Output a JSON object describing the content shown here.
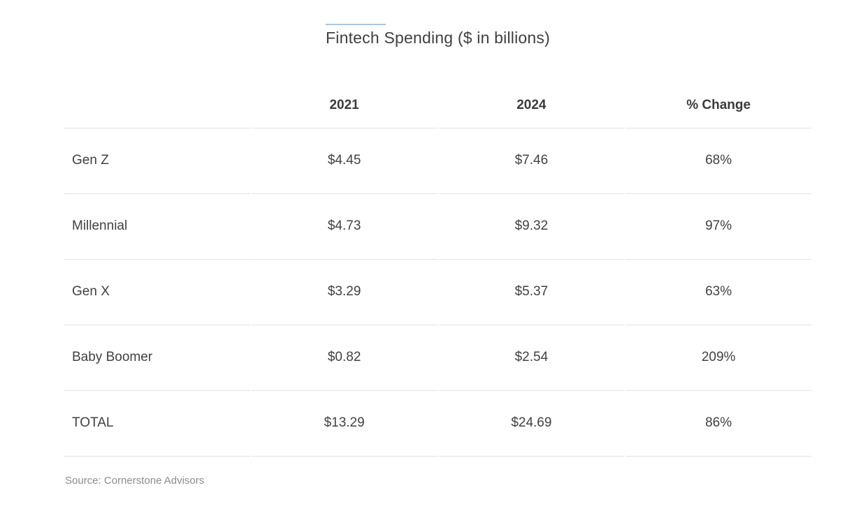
{
  "title": "Fintech Spending ($ in billions)",
  "colors": {
    "accent_rule": "#a9c4de",
    "divider": "#e2e2e2",
    "text": "#414141",
    "header_text": "#3b3b3b",
    "muted_text": "#8c8c8c",
    "background": "#ffffff"
  },
  "table": {
    "columns": [
      "",
      "2021",
      "2024",
      "% Change"
    ],
    "rows": [
      {
        "label": "Gen Z",
        "v2021": "$4.45",
        "v2024": "$7.46",
        "change": "68%"
      },
      {
        "label": "Millennial",
        "v2021": "$4.73",
        "v2024": "$9.32",
        "change": "97%"
      },
      {
        "label": "Gen X",
        "v2021": "$3.29",
        "v2024": "$5.37",
        "change": "63%"
      },
      {
        "label": "Baby Boomer",
        "v2021": "$0.82",
        "v2024": "$2.54",
        "change": "209%"
      },
      {
        "label": "TOTAL",
        "v2021": "$13.29",
        "v2024": "$24.69",
        "change": "86%"
      }
    ]
  },
  "source": "Source: Cornerstone Advisors",
  "chart_data": {
    "type": "table",
    "title": "Fintech Spending ($ in billions)",
    "columns": [
      "",
      "2021",
      "2024",
      "% Change"
    ],
    "rows": [
      [
        "Gen Z",
        4.45,
        7.46,
        "68%"
      ],
      [
        "Millennial",
        4.73,
        9.32,
        "97%"
      ],
      [
        "Gen X",
        3.29,
        5.37,
        "63%"
      ],
      [
        "Baby Boomer",
        0.82,
        2.54,
        "209%"
      ],
      [
        "TOTAL",
        13.29,
        24.69,
        "86%"
      ]
    ],
    "units": "USD billions",
    "source": "Cornerstone Advisors"
  }
}
